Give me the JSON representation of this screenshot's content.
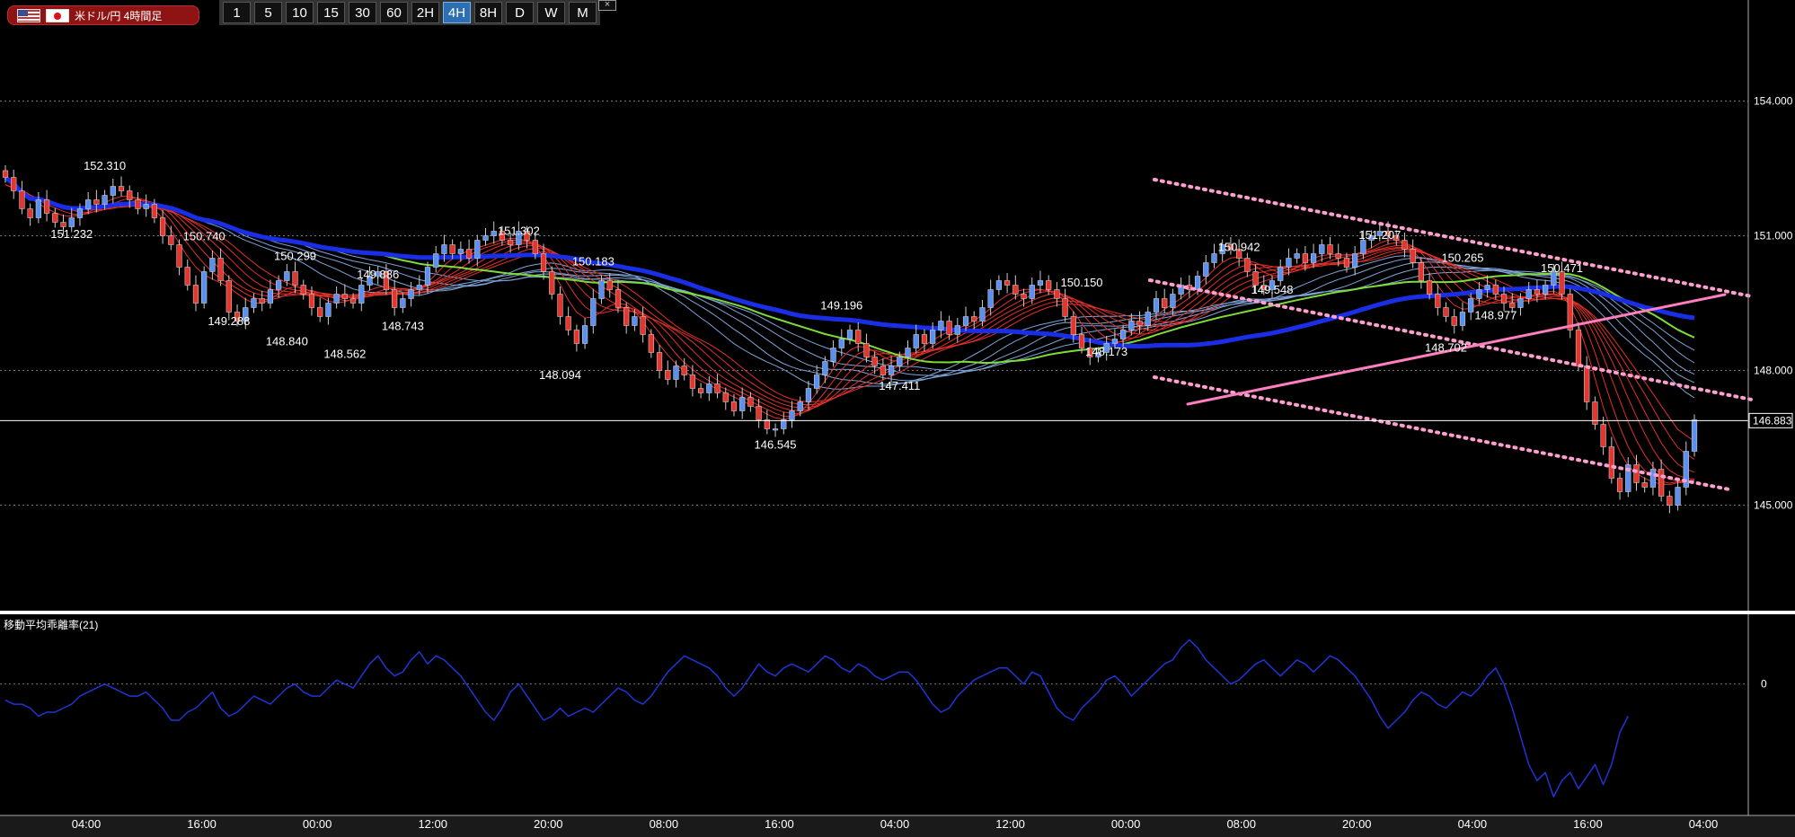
{
  "header": {
    "instrument_label": "米ドル/円 4時間足",
    "timeframes": [
      "1",
      "5",
      "10",
      "15",
      "30",
      "60",
      "2H",
      "4H",
      "8H",
      "D",
      "W",
      "M"
    ],
    "active_timeframe": "4H",
    "close_symbol": "×"
  },
  "colors": {
    "background": "#000000",
    "candle_up": "#5b8ff0",
    "candle_down": "#e3362f",
    "ma_long": "#1a2ee6",
    "ma_green": "#7ddc3a",
    "ma_ribbon_down": "#e0302a",
    "ma_ribbon_blue": "#7fa4d8",
    "channel": "#ff9fd0",
    "trendline": "#ff7fbf",
    "oscillator": "#1f35d6",
    "current_price_line": "#ffffff"
  },
  "chart_data": [
    {
      "type": "candlestick",
      "title": "米ドル/円 4時間足",
      "x_tick_labels": [
        "04:00",
        "16:00",
        "00:00",
        "12:00",
        "20:00",
        "08:00",
        "16:00",
        "04:00",
        "12:00",
        "00:00",
        "08:00",
        "20:00",
        "04:00",
        "16:00",
        "04:00"
      ],
      "y_tick_labels": [
        "154.000",
        "151.000",
        "148.000",
        "145.000"
      ],
      "ylim": [
        142.65,
        156.25
      ],
      "current_price": "146.883",
      "grid": "horizontal dotted",
      "annotations": [
        {
          "label": "152.310",
          "x": 12,
          "y": 152.31
        },
        {
          "label": "151.232",
          "x": 8,
          "y": 151.232
        },
        {
          "label": "150.740",
          "x": 24,
          "y": 150.74
        },
        {
          "label": "149.288",
          "x": 27,
          "y": 149.288
        },
        {
          "label": "150.299",
          "x": 35,
          "y": 150.299
        },
        {
          "label": "148.840",
          "x": 34,
          "y": 148.84
        },
        {
          "label": "149.886",
          "x": 45,
          "y": 149.886
        },
        {
          "label": "148.562",
          "x": 41,
          "y": 148.562
        },
        {
          "label": "148.743",
          "x": 48,
          "y": 148.743
        },
        {
          "label": "151.302",
          "x": 62,
          "y": 151.302
        },
        {
          "label": "150.183",
          "x": 71,
          "y": 150.183
        },
        {
          "label": "148.094",
          "x": 67,
          "y": 148.094
        },
        {
          "label": "149.196",
          "x": 101,
          "y": 149.196
        },
        {
          "label": "146.545",
          "x": 93,
          "y": 146.545
        },
        {
          "label": "147.411",
          "x": 108,
          "y": 147.411
        },
        {
          "label": "150.150",
          "x": 130,
          "y": 150.15
        },
        {
          "label": "148.173",
          "x": 133,
          "y": 148.173
        },
        {
          "label": "150.942",
          "x": 149,
          "y": 150.942
        },
        {
          "label": "149.548",
          "x": 153,
          "y": 149.548
        },
        {
          "label": "151.207",
          "x": 166,
          "y": 151.207
        },
        {
          "label": "150.265",
          "x": 176,
          "y": 150.265
        },
        {
          "label": "148.702",
          "x": 174,
          "y": 148.702
        },
        {
          "label": "148.977",
          "x": 180,
          "y": 148.977
        },
        {
          "label": "150.471",
          "x": 188,
          "y": 150.471
        }
      ],
      "closes": [
        152.3,
        152.0,
        151.6,
        151.4,
        151.8,
        151.5,
        151.3,
        151.2,
        151.4,
        151.6,
        151.8,
        151.7,
        151.9,
        152.1,
        152.0,
        151.8,
        151.6,
        151.7,
        151.4,
        151.0,
        150.8,
        150.3,
        149.9,
        149.5,
        150.2,
        150.5,
        150.0,
        149.3,
        149.1,
        149.4,
        149.6,
        149.5,
        149.8,
        150.0,
        150.2,
        149.9,
        149.7,
        149.4,
        149.2,
        149.5,
        149.7,
        149.6,
        149.5,
        149.9,
        150.1,
        150.2,
        149.8,
        149.4,
        149.6,
        149.8,
        149.9,
        150.3,
        150.6,
        150.8,
        150.6,
        150.7,
        150.5,
        150.9,
        151.0,
        151.1,
        150.9,
        150.8,
        151.1,
        150.9,
        150.6,
        150.2,
        149.7,
        149.2,
        148.9,
        148.6,
        149.0,
        149.6,
        150.0,
        149.8,
        149.4,
        149.0,
        149.2,
        148.8,
        148.4,
        148.0,
        147.8,
        148.1,
        147.9,
        147.6,
        147.5,
        147.7,
        147.5,
        147.3,
        147.1,
        147.4,
        147.2,
        146.9,
        146.7,
        146.7,
        146.9,
        147.1,
        147.3,
        147.6,
        147.9,
        148.2,
        148.5,
        148.7,
        148.9,
        148.6,
        148.3,
        148.1,
        147.9,
        148.1,
        148.3,
        148.5,
        148.8,
        148.6,
        148.9,
        149.1,
        148.8,
        149.0,
        149.2,
        149.1,
        149.4,
        149.8,
        150.0,
        149.9,
        149.7,
        149.6,
        149.9,
        150.0,
        149.8,
        149.6,
        149.2,
        148.8,
        148.5,
        148.3,
        148.4,
        148.6,
        148.7,
        148.9,
        149.1,
        149.0,
        149.3,
        149.6,
        149.4,
        149.7,
        149.9,
        149.8,
        150.1,
        150.4,
        150.6,
        150.8,
        150.7,
        150.5,
        150.2,
        149.9,
        149.8,
        150.0,
        150.3,
        150.5,
        150.6,
        150.4,
        150.6,
        150.8,
        150.6,
        150.5,
        150.3,
        150.6,
        150.9,
        151.0,
        151.1,
        151.0,
        150.9,
        150.7,
        150.4,
        150.0,
        149.7,
        149.4,
        149.2,
        149.0,
        149.3,
        149.6,
        149.8,
        149.9,
        149.7,
        149.5,
        149.4,
        149.6,
        149.8,
        149.7,
        149.9,
        150.2,
        149.7,
        148.9,
        148.1,
        147.3,
        146.8,
        146.3,
        145.6,
        145.3,
        145.9,
        145.5,
        145.4,
        145.8,
        145.2,
        145.0,
        145.4,
        146.2,
        146.9
      ]
    },
    {
      "type": "line",
      "title": "移動平均乖離率(21)",
      "y_tick_labels": [
        "0"
      ],
      "ylim": [
        -3.2,
        1.6
      ],
      "grid": "dotted zero line",
      "series": [
        {
          "values": [
            -0.4,
            -0.5,
            -0.5,
            -0.6,
            -0.8,
            -0.7,
            -0.7,
            -0.6,
            -0.5,
            -0.3,
            -0.2,
            -0.1,
            0.0,
            -0.1,
            -0.2,
            -0.3,
            -0.3,
            -0.2,
            -0.4,
            -0.6,
            -0.9,
            -0.9,
            -0.7,
            -0.6,
            -0.4,
            -0.2,
            -0.6,
            -0.8,
            -0.7,
            -0.5,
            -0.3,
            -0.4,
            -0.5,
            -0.3,
            -0.1,
            0.0,
            -0.2,
            -0.3,
            -0.3,
            -0.1,
            0.1,
            0.0,
            -0.1,
            0.2,
            0.5,
            0.7,
            0.4,
            0.2,
            0.3,
            0.6,
            0.8,
            0.5,
            0.7,
            0.6,
            0.4,
            0.2,
            -0.1,
            -0.4,
            -0.7,
            -0.9,
            -0.6,
            -0.2,
            0.0,
            -0.3,
            -0.6,
            -0.9,
            -0.8,
            -0.6,
            -0.8,
            -0.7,
            -0.6,
            -0.7,
            -0.5,
            -0.3,
            -0.1,
            -0.2,
            -0.4,
            -0.5,
            -0.3,
            0.0,
            0.3,
            0.5,
            0.7,
            0.6,
            0.5,
            0.4,
            0.2,
            -0.1,
            -0.3,
            -0.1,
            0.2,
            0.5,
            0.3,
            0.2,
            0.4,
            0.5,
            0.4,
            0.3,
            0.5,
            0.7,
            0.6,
            0.4,
            0.3,
            0.5,
            0.4,
            0.2,
            0.1,
            0.2,
            0.3,
            0.3,
            0.1,
            -0.2,
            -0.5,
            -0.7,
            -0.6,
            -0.3,
            -0.1,
            0.1,
            0.2,
            0.3,
            0.4,
            0.4,
            0.2,
            0.0,
            0.3,
            0.2,
            -0.2,
            -0.6,
            -0.8,
            -0.9,
            -0.6,
            -0.4,
            -0.2,
            0.1,
            0.2,
            0.0,
            -0.3,
            -0.1,
            0.1,
            0.3,
            0.5,
            0.6,
            0.9,
            1.1,
            0.9,
            0.6,
            0.4,
            0.2,
            0.0,
            0.1,
            0.3,
            0.5,
            0.6,
            0.4,
            0.2,
            0.4,
            0.6,
            0.5,
            0.3,
            0.5,
            0.7,
            0.6,
            0.4,
            0.2,
            -0.1,
            -0.4,
            -0.8,
            -1.1,
            -0.9,
            -0.7,
            -0.4,
            -0.2,
            -0.3,
            -0.5,
            -0.6,
            -0.4,
            -0.2,
            -0.3,
            -0.1,
            0.2,
            0.4,
            0.0,
            -0.6,
            -1.3,
            -2.0,
            -2.4,
            -2.2,
            -2.8,
            -2.4,
            -2.2,
            -2.6,
            -2.3,
            -2.0,
            -2.5,
            -2.0,
            -1.2,
            -0.8
          ]
        }
      ]
    }
  ]
}
